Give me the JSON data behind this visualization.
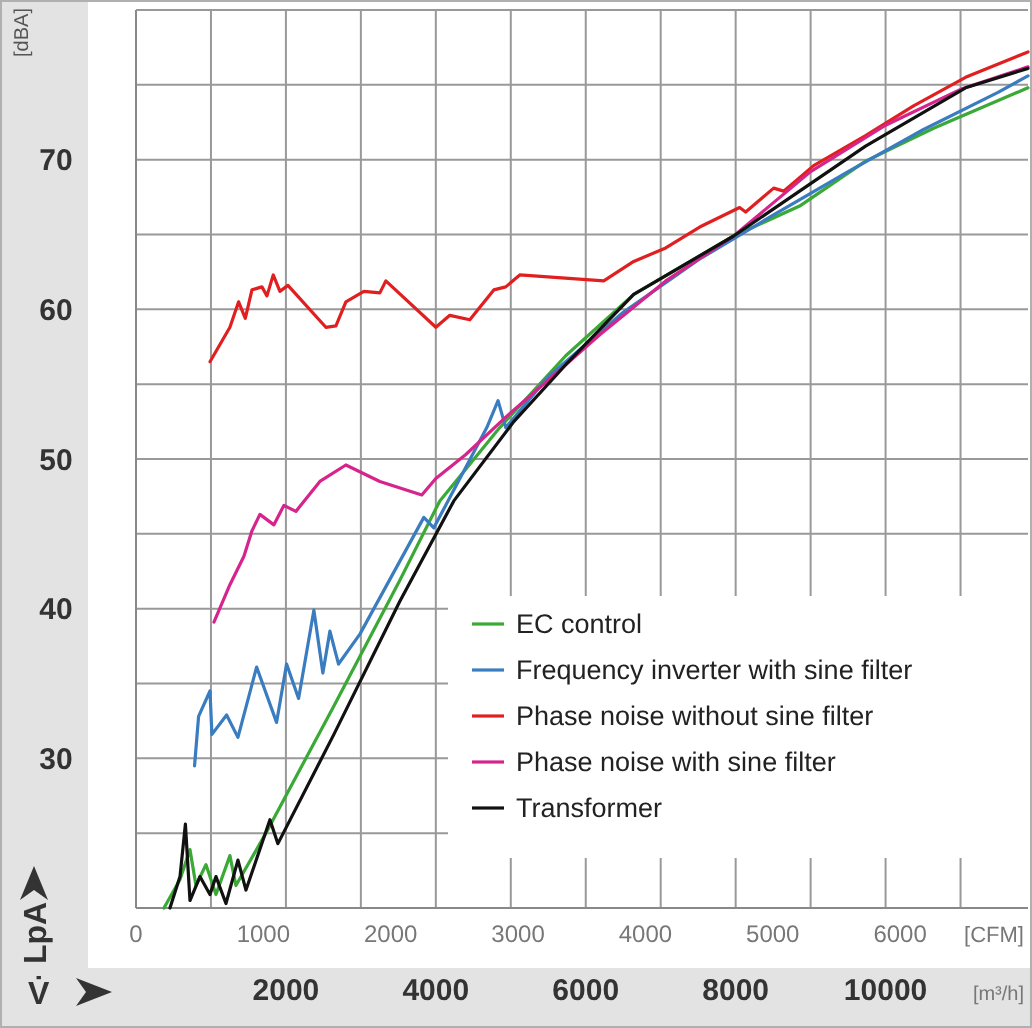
{
  "chart_data": {
    "type": "line",
    "xlabel": "[m³/h]",
    "x2label": "[CFM]",
    "ylabel": "[dBA]",
    "annotations": [
      "LpA",
      "V̇"
    ],
    "xlim": [
      0,
      11900
    ],
    "x2lim": [
      0,
      7004
    ],
    "ylim": [
      20,
      80
    ],
    "xticks": [
      {
        "value": 1000,
        "label": null
      },
      2000,
      {
        "value": 3000,
        "label": null
      },
      4000,
      {
        "value": 5000,
        "label": null
      },
      6000,
      {
        "value": 7000,
        "label": null
      },
      8000,
      {
        "value": 9000,
        "label": null
      },
      10000,
      {
        "value": 11000,
        "label": null
      }
    ],
    "x2ticks": [
      0,
      1000,
      2000,
      3000,
      4000,
      5000,
      6000
    ],
    "yticks": [
      {
        "value": 25,
        "label": null
      },
      30,
      {
        "value": 35,
        "label": null
      },
      40,
      {
        "value": 45,
        "label": null
      },
      50,
      {
        "value": 55,
        "label": null
      },
      60,
      {
        "value": 65,
        "label": null
      },
      70,
      {
        "value": 75,
        "label": null
      }
    ],
    "grid": true,
    "legend": "bottom right",
    "line_style": "solid",
    "marker": "none",
    "series": [
      {
        "name": "EC control",
        "color": "#3aa935",
        "x": [
          373,
          587,
          720,
          800,
          933,
          1067,
          1253,
          1333,
          1733,
          2640,
          3520,
          4053,
          4853,
          5733,
          6640,
          7973,
          8853,
          9733,
          10640,
          11900
        ],
        "values": [
          20,
          21.9,
          23.9,
          21.5,
          22.9,
          20.9,
          23.5,
          21.5,
          25,
          33.5,
          41.9,
          47.2,
          52.1,
          56.9,
          61,
          64.9,
          66.9,
          69.9,
          72.1,
          74.8
        ]
      },
      {
        "name": "Frequency inverter with sine filter",
        "color": "#3a7cc0",
        "x": [
          781,
          835,
          987,
          1013,
          1209,
          1360,
          1609,
          1875,
          2009,
          2169,
          2373,
          2493,
          2587,
          2702,
          2987,
          3840,
          3973,
          4680,
          4830,
          4933,
          5500,
          6500,
          7500,
          8500,
          9500,
          10500,
          11500,
          11900
        ],
        "values": [
          29.5,
          32.8,
          34.5,
          31.6,
          32.9,
          31.4,
          36.1,
          32.4,
          36.3,
          34,
          39.9,
          35.7,
          38.5,
          36.3,
          38.3,
          46.1,
          45.4,
          52.1,
          53.9,
          52.1,
          55.5,
          59.8,
          63.3,
          66.3,
          69.2,
          72,
          74.5,
          75.6
        ]
      },
      {
        "name": "Phase noise without sine filter",
        "color": "#e02020",
        "x": [
          987,
          1253,
          1369,
          1458,
          1547,
          1680,
          1747,
          1831,
          1920,
          2027,
          2533,
          2667,
          2800,
          3040,
          3253,
          3333,
          4000,
          4187,
          4453,
          4773,
          4933,
          5120,
          6240,
          6640,
          7067,
          7520,
          8053,
          8133,
          8507,
          8640,
          9040,
          9733,
          10373,
          11067,
          11900
        ],
        "values": [
          56.5,
          58.8,
          60.5,
          59.4,
          61.3,
          61.5,
          60.9,
          62.3,
          61.2,
          61.6,
          58.8,
          58.9,
          60.5,
          61.2,
          61.1,
          61.9,
          58.8,
          59.6,
          59.3,
          61.3,
          61.5,
          62.3,
          61.9,
          63.2,
          64.1,
          65.5,
          66.8,
          66.5,
          68.1,
          67.9,
          69.6,
          71.6,
          73.6,
          75.5,
          77.2
        ]
      },
      {
        "name": "Phase noise with sine filter",
        "color": "#d6248c",
        "x": [
          1040,
          1253,
          1440,
          1547,
          1653,
          1840,
          1973,
          2133,
          2453,
          2800,
          3253,
          3813,
          4000,
          4400,
          4933,
          5573,
          6187,
          7067,
          7973,
          9000,
          10000,
          11000,
          11900
        ],
        "values": [
          39.1,
          41.6,
          43.5,
          45.2,
          46.3,
          45.6,
          46.9,
          46.5,
          48.5,
          49.6,
          48.5,
          47.6,
          48.7,
          50.3,
          52.8,
          55.6,
          58.3,
          61.9,
          64.9,
          69.2,
          72.3,
          74.7,
          76.2
        ]
      },
      {
        "name": "Transformer",
        "color": "#111111",
        "x": [
          453,
          587,
          659,
          720,
          853,
          987,
          1067,
          1200,
          1360,
          1467,
          1787,
          1893,
          2640,
          3520,
          4240,
          5040,
          5733,
          6640,
          7973,
          9733,
          11067,
          11900
        ],
        "values": [
          20,
          22.1,
          25.6,
          20.5,
          22.1,
          20.9,
          22.1,
          20.3,
          23.2,
          21.2,
          25.9,
          24.3,
          31.6,
          40.5,
          47.2,
          52.5,
          56.3,
          61,
          64.9,
          70.9,
          74.8,
          76.1
        ]
      }
    ]
  }
}
